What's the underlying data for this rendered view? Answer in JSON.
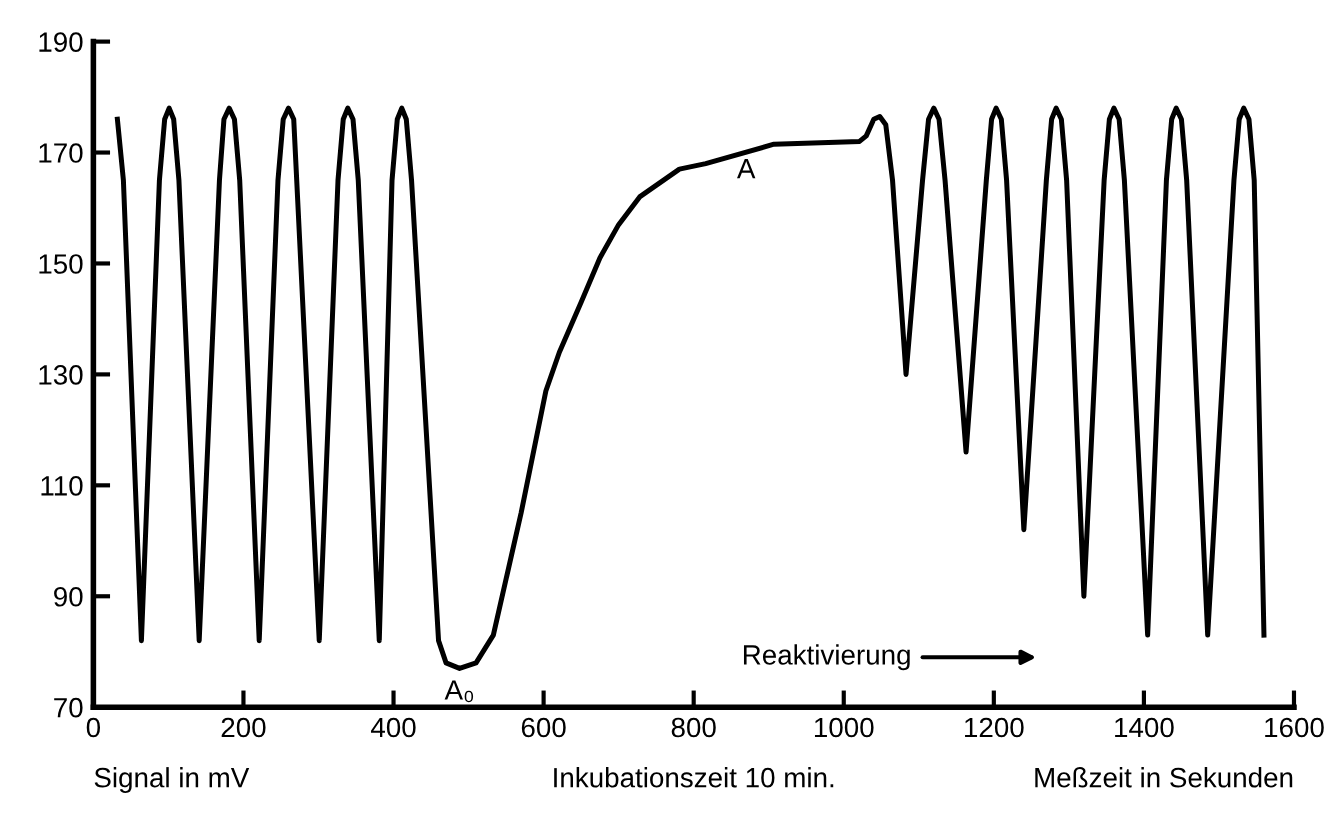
{
  "chart_data": {
    "type": "line",
    "xlabel": "Meßzeit in Sekunden",
    "x": [
      32,
      40,
      64,
      88,
      95,
      101,
      107,
      114,
      141,
      168,
      174,
      181,
      188,
      195,
      221,
      246,
      253,
      260,
      267,
      301,
      326,
      333,
      339,
      346,
      353,
      381,
      398,
      405,
      411,
      417,
      424,
      460,
      470,
      488,
      510,
      533,
      570,
      603,
      621,
      650,
      675,
      700,
      728,
      781,
      816,
      907,
      1021,
      1030,
      1040,
      1048,
      1056,
      1065,
      1083,
      1105,
      1113,
      1120,
      1127,
      1135,
      1163,
      1190,
      1197,
      1203,
      1210,
      1217,
      1240,
      1270,
      1277,
      1283,
      1290,
      1297,
      1320,
      1347,
      1354,
      1360,
      1367,
      1374,
      1405,
      1430,
      1437,
      1443,
      1450,
      1457,
      1485,
      1520,
      1527,
      1533,
      1540,
      1547,
      1560
    ],
    "series": [
      {
        "color": "#000000",
        "values": [
          176,
          165,
          82,
          165,
          176,
          178,
          176,
          165,
          82,
          165,
          176,
          178,
          176,
          165,
          82,
          165,
          176,
          178,
          176,
          82,
          165,
          176,
          178,
          176,
          165,
          82,
          165,
          176,
          178,
          176,
          165,
          82,
          78,
          77,
          78,
          83,
          105,
          127,
          134,
          143,
          151,
          157,
          162,
          167,
          168,
          171.5,
          172,
          173,
          176,
          176.5,
          175,
          165,
          130,
          165,
          176,
          178,
          176,
          165,
          116,
          165,
          176,
          178,
          176,
          165,
          102,
          165,
          176,
          178,
          176,
          165,
          90,
          165,
          176,
          178,
          176,
          165,
          83,
          165,
          176,
          178,
          176,
          165,
          83,
          165,
          176,
          178,
          176,
          165,
          83
        ]
      }
    ],
    "xlim": [
      0,
      1600
    ],
    "ylim": [
      70,
      190
    ],
    "xticks": [
      0,
      200,
      400,
      600,
      800,
      1000,
      1200,
      1400,
      1600
    ],
    "yticks": [
      70,
      90,
      110,
      130,
      150,
      170,
      190
    ],
    "grid": false,
    "legend": false,
    "marker": "none",
    "line_style": "solid",
    "annotations": [
      {
        "text": "A",
        "x": 870,
        "y": 171
      },
      {
        "text": "A₀",
        "x": 488,
        "y": 77
      },
      "Reaktivierung",
      "Inkubationszeit 10 min.",
      "Signal in mV"
    ]
  }
}
